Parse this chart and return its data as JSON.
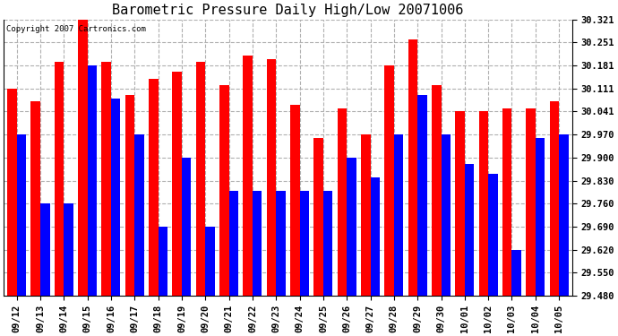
{
  "title": "Barometric Pressure Daily High/Low 20071006",
  "copyright": "Copyright 2007 Cartronics.com",
  "categories": [
    "09/12",
    "09/13",
    "09/14",
    "09/15",
    "09/16",
    "09/17",
    "09/18",
    "09/19",
    "09/20",
    "09/21",
    "09/22",
    "09/23",
    "09/24",
    "09/25",
    "09/26",
    "09/27",
    "09/28",
    "09/29",
    "09/30",
    "10/01",
    "10/02",
    "10/03",
    "10/04",
    "10/05"
  ],
  "highs": [
    30.111,
    30.071,
    30.191,
    30.33,
    30.191,
    30.091,
    30.141,
    30.161,
    30.191,
    30.121,
    30.211,
    30.201,
    30.061,
    29.961,
    30.051,
    29.971,
    30.181,
    30.261,
    30.121,
    30.041,
    30.041,
    30.051,
    30.051,
    30.071
  ],
  "lows": [
    29.97,
    29.76,
    29.76,
    30.181,
    30.081,
    29.97,
    29.691,
    29.901,
    29.691,
    29.8,
    29.8,
    29.8,
    29.8,
    29.8,
    29.9,
    29.84,
    29.97,
    30.09,
    29.97,
    29.88,
    29.85,
    29.62,
    29.96,
    29.97
  ],
  "ymin": 29.48,
  "ymax": 30.321,
  "yticks": [
    29.48,
    29.55,
    29.62,
    29.69,
    29.76,
    29.83,
    29.9,
    29.97,
    30.041,
    30.111,
    30.181,
    30.251,
    30.321
  ],
  "ytick_labels": [
    "29.480",
    "29.550",
    "29.620",
    "29.690",
    "29.760",
    "29.830",
    "29.900",
    "29.970",
    "30.041",
    "30.111",
    "30.181",
    "30.251",
    "30.321"
  ],
  "high_color": "#ff0000",
  "low_color": "#0000ff",
  "background_color": "#ffffff",
  "grid_color": "#b0b0b0",
  "title_fontsize": 11,
  "tick_fontsize": 7.5,
  "bar_width": 0.4
}
